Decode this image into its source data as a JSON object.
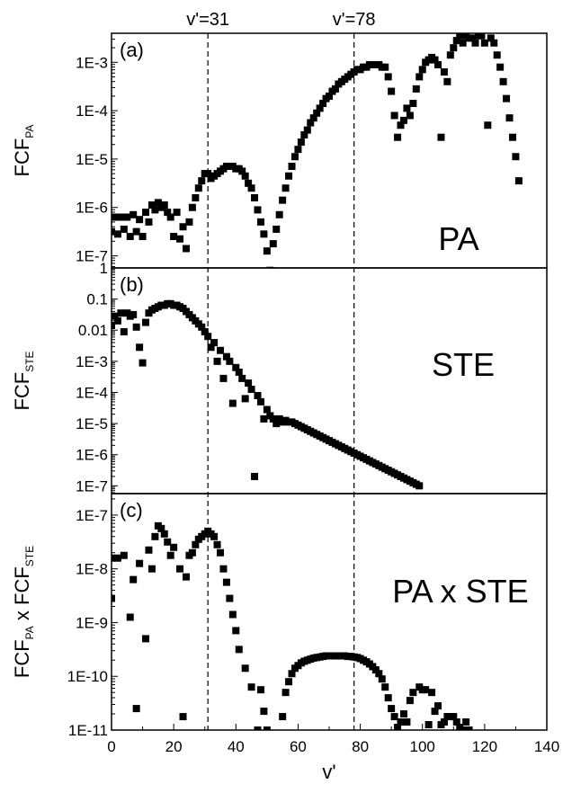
{
  "chart_data": {
    "type": "scatter",
    "x_axis": {
      "label": "v'",
      "range": [
        0,
        140
      ],
      "ticks": [
        0,
        20,
        40,
        60,
        80,
        100,
        120,
        140
      ],
      "tick_labels": [
        "0",
        "20",
        "40",
        "60",
        "80",
        "100",
        "120",
        "140"
      ]
    },
    "reference_lines": [
      {
        "x": 31,
        "label": "v'=31"
      },
      {
        "x": 78,
        "label": "v'=78"
      }
    ],
    "marker_color": "#000000",
    "panels": [
      {
        "id": "a",
        "letter": "(a)",
        "name": "PA",
        "ylabel_main": "FCF",
        "ylabel_sub": "PA",
        "yscale": "log",
        "ylim_log10": [
          -7.25,
          -2.4
        ],
        "yticks": [
          {
            "e": -7,
            "label": "1E-7"
          },
          {
            "e": -6,
            "label": "1E-6"
          },
          {
            "e": -5,
            "label": "1E-5"
          },
          {
            "e": -4,
            "label": "1E-4"
          },
          {
            "e": -3,
            "label": "1E-3"
          }
        ],
        "x": [
          0,
          1,
          2,
          3,
          4,
          5,
          6,
          7,
          8,
          9,
          10,
          11,
          12,
          13,
          14,
          15,
          16,
          17,
          18,
          19,
          20,
          21,
          22,
          23,
          24,
          25,
          26,
          27,
          28,
          29,
          30,
          31,
          32,
          33,
          34,
          35,
          36,
          37,
          38,
          39,
          40,
          41,
          42,
          43,
          44,
          45,
          46,
          47,
          48,
          49,
          50,
          51,
          52,
          53,
          54,
          55,
          56,
          57,
          58,
          59,
          60,
          61,
          62,
          63,
          64,
          65,
          66,
          67,
          68,
          69,
          70,
          71,
          72,
          73,
          74,
          75,
          76,
          77,
          78,
          79,
          80,
          81,
          82,
          83,
          84,
          85,
          86,
          87,
          88,
          89,
          90,
          91,
          92,
          93,
          94,
          95,
          96,
          97,
          98,
          99,
          100,
          101,
          102,
          103,
          104,
          105,
          106,
          107,
          108,
          109,
          110,
          111,
          112,
          113,
          114,
          115,
          116,
          117,
          118,
          119,
          120,
          121,
          122,
          123,
          124,
          125,
          126,
          127,
          128,
          129,
          130,
          131
        ],
        "log10_y": [
          -6.5,
          -6.2,
          -6.55,
          -6.2,
          -6.45,
          -6.2,
          -6.6,
          -6.15,
          -6.5,
          -6.25,
          -6.6,
          -6.1,
          -6.3,
          -5.95,
          -6.05,
          -5.9,
          -6.0,
          -5.95,
          -6.1,
          -6.2,
          -6.6,
          -6.1,
          -6.65,
          -6.4,
          -6.85,
          -6.3,
          -6.0,
          -5.8,
          -5.6,
          -5.45,
          -5.3,
          -5.3,
          -5.4,
          -5.35,
          -5.3,
          -5.25,
          -5.2,
          -5.15,
          -5.15,
          -5.15,
          -5.2,
          -5.2,
          -5.25,
          -5.35,
          -5.5,
          -5.6,
          -5.8,
          -6.05,
          -6.3,
          -6.55,
          -6.9,
          -7.3,
          -6.75,
          -6.45,
          -6.15,
          -5.85,
          -5.6,
          -5.35,
          -5.15,
          -4.95,
          -4.8,
          -4.65,
          -4.5,
          -4.4,
          -4.25,
          -4.15,
          -4.05,
          -3.95,
          -3.85,
          -3.75,
          -3.7,
          -3.6,
          -3.55,
          -3.45,
          -3.4,
          -3.35,
          -3.3,
          -3.25,
          -3.2,
          -3.15,
          -3.15,
          -3.1,
          -3.1,
          -3.05,
          -3.05,
          -3.05,
          -3.05,
          -3.1,
          -3.1,
          -3.3,
          -3.6,
          -4.1,
          -4.55,
          -4.3,
          -4.2,
          -3.95,
          -4.1,
          -3.85,
          -3.55,
          -3.3,
          -3.15,
          -3.0,
          -2.95,
          -2.9,
          -2.95,
          -3.05,
          -4.55,
          -3.2,
          -3.4,
          -2.85,
          -2.7,
          -2.55,
          -2.45,
          -2.6,
          -2.45,
          -2.5,
          -2.5,
          -2.6,
          -2.45,
          -2.45,
          -2.6,
          -4.3,
          -2.5,
          -2.6,
          -2.85,
          -3.1,
          -3.4,
          -3.75,
          -4.15,
          -4.55,
          -4.95,
          -5.45
        ]
      },
      {
        "id": "b",
        "letter": "(b)",
        "name": "STE",
        "ylabel_main": "FCF",
        "ylabel_sub": "STE",
        "yscale": "log",
        "ylim_log10": [
          -7.25,
          0
        ],
        "yticks": [
          {
            "e": 0,
            "label": "1"
          },
          {
            "e": -1,
            "label": "0.1"
          },
          {
            "e": -2,
            "label": "0.01"
          },
          {
            "e": -3,
            "label": "1E-3"
          },
          {
            "e": -4,
            "label": "1E-4"
          },
          {
            "e": -5,
            "label": "1E-5"
          },
          {
            "e": -6,
            "label": "1E-6"
          },
          {
            "e": -7,
            "label": "1E-7"
          }
        ],
        "x": [
          0,
          1,
          2,
          3,
          4,
          5,
          6,
          7,
          8,
          9,
          10,
          11,
          12,
          13,
          14,
          15,
          16,
          17,
          18,
          19,
          20,
          21,
          22,
          23,
          24,
          25,
          26,
          27,
          28,
          29,
          30,
          31,
          32,
          33,
          34,
          35,
          36,
          37,
          38,
          39,
          40,
          41,
          42,
          43,
          44,
          45,
          46,
          47,
          48,
          49,
          50,
          51,
          52,
          53,
          54,
          55,
          56,
          57,
          58,
          59,
          60,
          61,
          62,
          63,
          64,
          65,
          66,
          67,
          68,
          69,
          70,
          71,
          72,
          73,
          74,
          75,
          76,
          77,
          78,
          79,
          80,
          81,
          82,
          83,
          84,
          85,
          86,
          87,
          88,
          89,
          90,
          91,
          92,
          93,
          94,
          95,
          96,
          97,
          98,
          99
        ],
        "log10_y": [
          -1.85,
          -1.55,
          -1.7,
          -1.45,
          -2.05,
          -1.45,
          -1.55,
          -1.5,
          -1.9,
          -2.55,
          -3.05,
          -1.75,
          -1.45,
          -1.35,
          -1.3,
          -1.25,
          -1.2,
          -1.2,
          -1.15,
          -1.15,
          -1.2,
          -1.2,
          -1.25,
          -1.3,
          -1.4,
          -1.5,
          -1.6,
          -1.7,
          -1.8,
          -1.9,
          -2.05,
          -2.2,
          -2.55,
          -2.4,
          -3.0,
          -2.65,
          -3.55,
          -2.85,
          -3.0,
          -4.35,
          -3.2,
          -3.35,
          -3.55,
          -4.2,
          -3.7,
          -3.9,
          -6.7,
          -4.1,
          -4.3,
          -4.85,
          -4.55,
          -4.75,
          -4.85,
          -5.0,
          -4.85,
          -4.95,
          -4.9,
          -4.95,
          -4.95,
          -5.0,
          -5.05,
          -5.1,
          -5.15,
          -5.2,
          -5.25,
          -5.3,
          -5.35,
          -5.4,
          -5.45,
          -5.5,
          -5.55,
          -5.6,
          -5.65,
          -5.7,
          -5.75,
          -5.8,
          -5.85,
          -5.9,
          -5.95,
          -6.0,
          -6.05,
          -6.1,
          -6.15,
          -6.2,
          -6.25,
          -6.3,
          -6.35,
          -6.4,
          -6.45,
          -6.5,
          -6.55,
          -6.6,
          -6.65,
          -6.7,
          -6.75,
          -6.8,
          -6.85,
          -6.9,
          -6.95,
          -7.0
        ]
      },
      {
        "id": "c",
        "letter": "(c)",
        "name": "PA x STE",
        "ylabel_main": "FCF",
        "ylabel_sub": "PA",
        "ylabel_mid": " x FCF",
        "ylabel_sub2": "STE",
        "yscale": "log",
        "ylim_log10": [
          -11,
          -6.6
        ],
        "yticks": [
          {
            "e": -7,
            "label": "1E-7"
          },
          {
            "e": -8,
            "label": "1E-8"
          },
          {
            "e": -9,
            "label": "1E-9"
          },
          {
            "e": -10,
            "label": "1E-10"
          },
          {
            "e": -11,
            "label": "1E-11"
          }
        ],
        "x": [
          0,
          0,
          2,
          4,
          6,
          7,
          8,
          9,
          11,
          12,
          13,
          14,
          15,
          16,
          17,
          18,
          19,
          20,
          22,
          23,
          24,
          25,
          26,
          27,
          28,
          29,
          30,
          31,
          32,
          33,
          34,
          35,
          36,
          37,
          38,
          39,
          40,
          41,
          43,
          45,
          47,
          48,
          49,
          50,
          55,
          56,
          57,
          58,
          59,
          60,
          61,
          62,
          63,
          64,
          65,
          66,
          67,
          68,
          69,
          70,
          71,
          72,
          73,
          74,
          75,
          76,
          77,
          78,
          79,
          80,
          81,
          82,
          83,
          84,
          85,
          86,
          87,
          88,
          89,
          90,
          91,
          92,
          93,
          94,
          95,
          96,
          97,
          99,
          100,
          101,
          102,
          103,
          104,
          105,
          106,
          107,
          108,
          109,
          110,
          111,
          112,
          113,
          114,
          115
        ],
        "log10_y": [
          -8.55,
          -7.8,
          -7.8,
          -7.75,
          -8.9,
          -8.2,
          -10.6,
          -7.9,
          -9.3,
          -7.65,
          -8.0,
          -7.4,
          -7.2,
          -7.25,
          -7.35,
          -7.5,
          -7.75,
          -7.6,
          -8.0,
          -10.75,
          -8.15,
          -7.75,
          -7.7,
          -7.55,
          -7.45,
          -7.4,
          -7.35,
          -7.3,
          -7.35,
          -7.4,
          -7.55,
          -7.7,
          -8.0,
          -8.25,
          -8.55,
          -8.85,
          -9.15,
          -9.5,
          -9.85,
          -10.2,
          -11.0,
          -10.25,
          -10.65,
          -11.0,
          -10.75,
          -10.3,
          -10.1,
          -9.95,
          -9.85,
          -9.8,
          -9.75,
          -9.72,
          -9.7,
          -9.68,
          -9.66,
          -9.65,
          -9.64,
          -9.63,
          -9.62,
          -9.62,
          -9.62,
          -9.62,
          -9.62,
          -9.62,
          -9.62,
          -9.63,
          -9.63,
          -9.64,
          -9.65,
          -9.67,
          -9.7,
          -9.73,
          -9.77,
          -9.82,
          -9.88,
          -9.95,
          -10.05,
          -10.2,
          -10.4,
          -10.6,
          -10.75,
          -10.95,
          -10.85,
          -10.7,
          -10.85,
          -10.45,
          -10.3,
          -10.2,
          -10.25,
          -10.25,
          -10.9,
          -10.3,
          -10.65,
          -10.55,
          -10.9,
          -10.85,
          -10.75,
          -10.75,
          -10.75,
          -10.85,
          -10.95,
          -11.0,
          -10.85,
          -11.0
        ]
      }
    ]
  }
}
